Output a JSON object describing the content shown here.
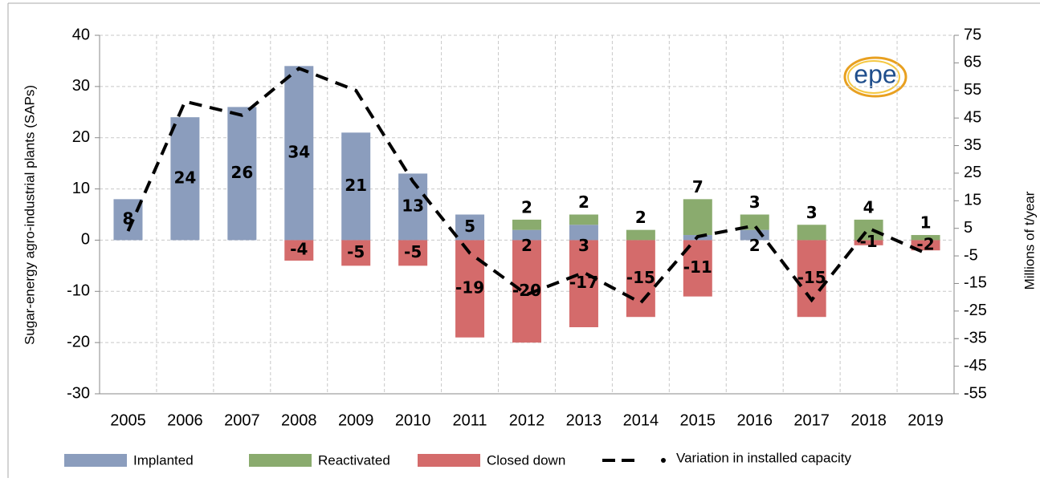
{
  "chart_data": {
    "type": "bar",
    "logo": "epe",
    "y_label": "Sugar-energy agro-industrial plants (SAPs)",
    "y2_label": "Millions of t/year",
    "categories": [
      "2005",
      "2006",
      "2007",
      "2008",
      "2009",
      "2010",
      "2011",
      "2012",
      "2013",
      "2014",
      "2015",
      "2016",
      "2017",
      "2018",
      "2019"
    ],
    "series": [
      {
        "name": "Implanted",
        "color": "#8b9dbd",
        "values": [
          8,
          24,
          26,
          34,
          21,
          13,
          5,
          2,
          3,
          0,
          1,
          2,
          0,
          0,
          0
        ],
        "value_labels": [
          "8",
          "24",
          "26",
          "34",
          "21",
          "13",
          "5",
          "2",
          "3",
          null,
          null,
          "2",
          null,
          null,
          null
        ]
      },
      {
        "name": "Reactivated",
        "color": "#8aab6e",
        "values": [
          0,
          0,
          0,
          0,
          0,
          0,
          0,
          2,
          2,
          2,
          7,
          3,
          3,
          4,
          1
        ],
        "value_labels": [
          null,
          null,
          null,
          null,
          null,
          null,
          null,
          "2",
          "2",
          "2",
          "7",
          "3",
          "3",
          "4",
          "1"
        ]
      },
      {
        "name": "Closed down",
        "color": "#d46b6b",
        "values": [
          0,
          0,
          0,
          -4,
          -5,
          -5,
          -19,
          -20,
          -17,
          -15,
          -11,
          0,
          -15,
          -1,
          -2
        ],
        "value_labels": [
          null,
          null,
          null,
          "-4",
          "-5",
          "-5",
          "-19",
          "-20",
          "-17",
          "-15",
          "-11",
          null,
          "-15",
          "-1",
          "-2"
        ]
      },
      {
        "name": "Variation in installed capacity",
        "type": "line",
        "axis": "y2",
        "color": "#000000",
        "values": [
          4,
          51,
          46,
          63,
          55,
          22,
          -4,
          -19,
          -11,
          -22,
          2,
          6,
          -21,
          5,
          -4
        ]
      }
    ],
    "ylim": [
      -30,
      40
    ],
    "yticks": [
      -30,
      -20,
      -10,
      0,
      10,
      20,
      30,
      40
    ],
    "y2lim": [
      -55,
      75
    ],
    "y2ticks": [
      -55,
      -45,
      -35,
      -25,
      -15,
      -5,
      5,
      15,
      25,
      35,
      45,
      55,
      65,
      75
    ],
    "grid": true
  }
}
